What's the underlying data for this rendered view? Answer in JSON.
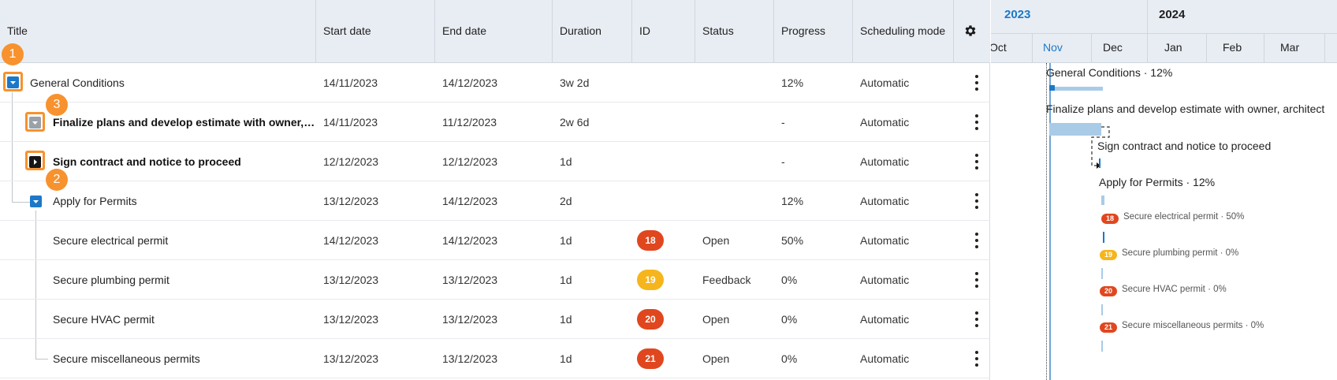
{
  "columns": {
    "title": "Title",
    "start": "Start date",
    "end": "End date",
    "duration": "Duration",
    "id": "ID",
    "status": "Status",
    "progress": "Progress",
    "mode": "Scheduling mode"
  },
  "settings_icon": "gear-icon",
  "rows": [
    {
      "title": "General Conditions",
      "start": "14/11/2023",
      "end": "14/12/2023",
      "duration": "3w 2d",
      "id": "",
      "status": "",
      "progress": "12%",
      "mode": "Automatic"
    },
    {
      "title": "Finalize plans and develop estimate with owner, arc...",
      "start": "14/11/2023",
      "end": "11/12/2023",
      "duration": "2w 6d",
      "id": "",
      "status": "",
      "progress": "-",
      "mode": "Automatic"
    },
    {
      "title": "Sign contract and notice to proceed",
      "start": "12/12/2023",
      "end": "12/12/2023",
      "duration": "1d",
      "id": "",
      "status": "",
      "progress": "-",
      "mode": "Automatic"
    },
    {
      "title": "Apply for Permits",
      "start": "13/12/2023",
      "end": "14/12/2023",
      "duration": "2d",
      "id": "",
      "status": "",
      "progress": "12%",
      "mode": "Automatic"
    },
    {
      "title": "Secure electrical permit",
      "start": "14/12/2023",
      "end": "14/12/2023",
      "duration": "1d",
      "id": "18",
      "status": "Open",
      "progress": "50%",
      "mode": "Automatic"
    },
    {
      "title": "Secure plumbing permit",
      "start": "13/12/2023",
      "end": "13/12/2023",
      "duration": "1d",
      "id": "19",
      "status": "Feedback",
      "progress": "0%",
      "mode": "Automatic"
    },
    {
      "title": "Secure HVAC permit",
      "start": "13/12/2023",
      "end": "13/12/2023",
      "duration": "1d",
      "id": "20",
      "status": "Open",
      "progress": "0%",
      "mode": "Automatic"
    },
    {
      "title": "Secure miscellaneous permits",
      "start": "13/12/2023",
      "end": "13/12/2023",
      "duration": "1d",
      "id": "21",
      "status": "Open",
      "progress": "0%",
      "mode": "Automatic"
    }
  ],
  "callouts": [
    "1",
    "2",
    "3"
  ],
  "colors": {
    "accent": "#1c78c8",
    "highlight": "#f7922f",
    "badge_open": "#e0471f",
    "badge_feedback": "#f6b51c",
    "bar": "#a9cbe8"
  },
  "gantt": {
    "years": [
      "2023",
      "2024"
    ],
    "months": [
      "Oct",
      "Nov",
      "Dec",
      "Jan",
      "Feb",
      "Mar"
    ],
    "labels": [
      "General Conditions · 12%",
      "Finalize plans and develop estimate with owner, architect",
      "Sign contract and notice to proceed",
      "Apply for Permits · 12%",
      "Secure electrical permit · 50%",
      "Secure plumbing permit · 0%",
      "Secure HVAC permit · 0%",
      "Secure miscellaneous permits · 0%"
    ],
    "badges": [
      "18",
      "19",
      "20",
      "21"
    ]
  }
}
